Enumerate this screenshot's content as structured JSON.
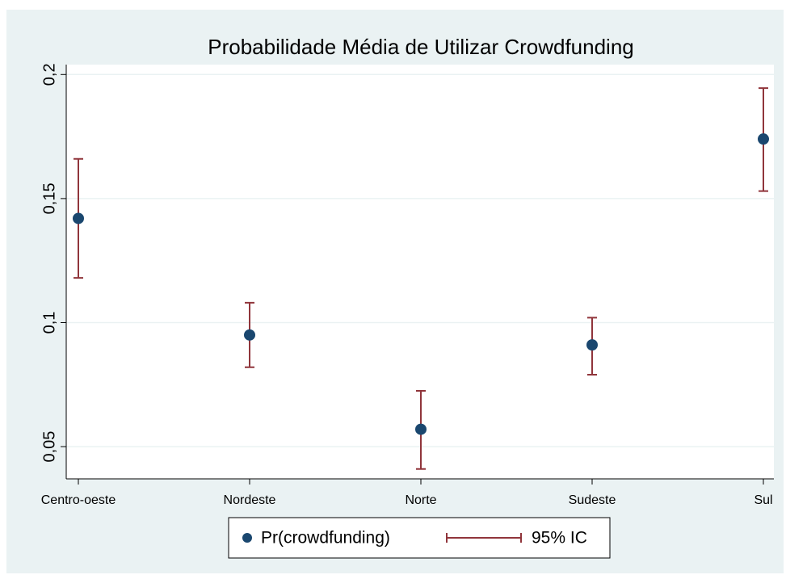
{
  "chart_data": {
    "type": "errorbar",
    "title": "Probabilidade Média de Utilizar Crowdfunding",
    "categories": [
      "Centro-oeste",
      "Nordeste",
      "Norte",
      "Sudeste",
      "Sul"
    ],
    "series": [
      {
        "name": "Pr(crowdfunding)",
        "color": "#1a476f",
        "values": [
          0.142,
          0.095,
          0.057,
          0.091,
          0.174
        ]
      }
    ],
    "ci": {
      "name": "95% IC",
      "color": "#90353b",
      "lower": [
        0.118,
        0.082,
        0.041,
        0.079,
        0.153
      ],
      "upper": [
        0.166,
        0.108,
        0.0725,
        0.102,
        0.1945
      ]
    },
    "ylim": [
      0.037,
      0.204
    ],
    "yticks": [
      {
        "value": 0.05,
        "label": "0,05"
      },
      {
        "value": 0.1,
        "label": "0,1"
      },
      {
        "value": 0.15,
        "label": "0,15"
      },
      {
        "value": 0.2,
        "label": "0,2"
      }
    ],
    "grid": true,
    "legend": "bottom"
  }
}
